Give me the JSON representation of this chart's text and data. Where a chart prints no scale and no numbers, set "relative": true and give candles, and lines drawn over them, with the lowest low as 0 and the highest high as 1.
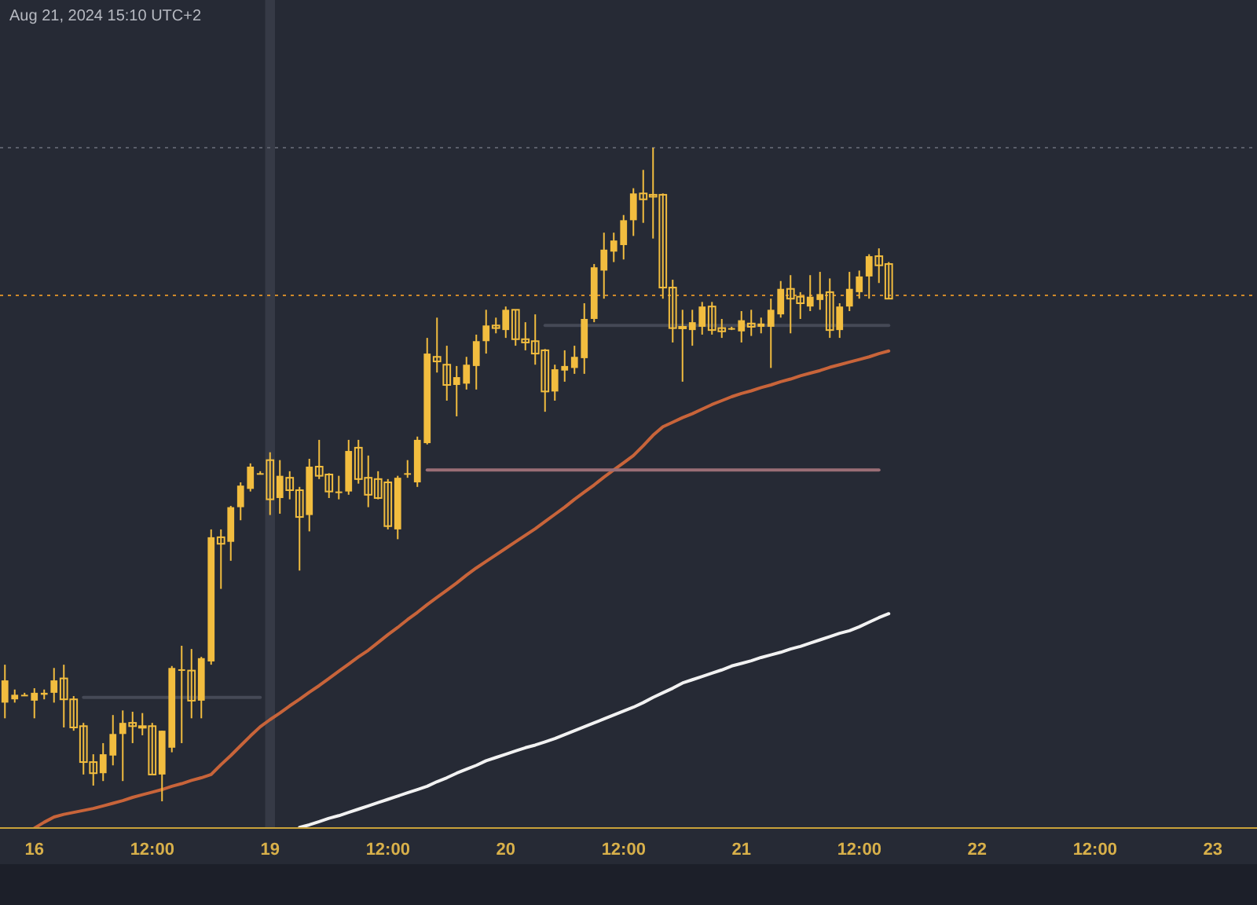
{
  "chart_data": {
    "type": "candlestick",
    "relative": true,
    "color": "#f2bd3f",
    "annotations": [
      "Aug 21, 2024 15:10 UTC+2"
    ],
    "categories": [
      null,
      null,
      null,
      "16",
      null,
      null,
      null,
      null,
      null,
      null,
      null,
      null,
      null,
      null,
      null,
      "12:00",
      null,
      null,
      null,
      null,
      null,
      null,
      null,
      null,
      null,
      null,
      null,
      "19",
      null,
      null,
      null,
      null,
      null,
      null,
      null,
      null,
      null,
      null,
      null,
      "12:00",
      null,
      null,
      null,
      null,
      null,
      null,
      null,
      null,
      null,
      null,
      null,
      "20",
      null,
      null,
      null,
      null,
      null,
      null,
      null,
      null,
      null,
      null,
      null,
      "12:00",
      null,
      null,
      null,
      null,
      null,
      null,
      null,
      null,
      null,
      null,
      null,
      "21",
      null,
      null,
      null,
      null,
      null,
      null,
      null,
      null,
      null,
      null,
      null,
      "12:00",
      null,
      null,
      null,
      null,
      null,
      null,
      null,
      null,
      null,
      null,
      null,
      "22",
      null,
      null,
      null,
      null,
      null,
      null,
      null,
      null,
      null,
      null,
      null,
      "12:00",
      null,
      null,
      null,
      null,
      null,
      null,
      null,
      null,
      null,
      null,
      null,
      "23",
      null,
      null,
      null,
      null
    ],
    "ohlc": [
      [
        0.151,
        0.209,
        0.127,
        0.185
      ],
      [
        0.156,
        0.171,
        0.151,
        0.163
      ],
      [
        0.163,
        0.166,
        0.161,
        0.163
      ],
      [
        0.154,
        0.173,
        0.127,
        0.166
      ],
      [
        0.163,
        0.171,
        0.156,
        0.166
      ],
      [
        0.166,
        0.204,
        0.151,
        0.185
      ],
      [
        0.188,
        0.209,
        0.113,
        0.156
      ],
      [
        0.156,
        0.161,
        0.108,
        0.113
      ],
      [
        0.115,
        0.12,
        0.041,
        0.06
      ],
      [
        0.06,
        0.072,
        0.024,
        0.043
      ],
      [
        0.043,
        0.089,
        0.031,
        0.072
      ],
      [
        0.07,
        0.132,
        0.055,
        0.103
      ],
      [
        0.103,
        0.139,
        0.031,
        0.12
      ],
      [
        0.12,
        0.137,
        0.089,
        0.115
      ],
      [
        0.115,
        0.135,
        0.101,
        0.113
      ],
      [
        0.115,
        0.12,
        0.041,
        0.041
      ],
      [
        0.041,
        0.108,
        0,
        0.108
      ],
      [
        0.082,
        0.207,
        0.075,
        0.204
      ],
      [
        0.2,
        0.238,
        0.089,
        0.202
      ],
      [
        0.2,
        0.233,
        0.127,
        0.154
      ],
      [
        0.154,
        0.221,
        0.127,
        0.219
      ],
      [
        0.214,
        0.416,
        0.209,
        0.404
      ],
      [
        0.404,
        0.416,
        0.325,
        0.394
      ],
      [
        0.397,
        0.452,
        0.368,
        0.45
      ],
      [
        0.45,
        0.488,
        0.43,
        0.483
      ],
      [
        0.478,
        0.517,
        0.474,
        0.512
      ],
      [
        0.502,
        0.505,
        0.5,
        0.502
      ],
      [
        0.522,
        0.534,
        0.438,
        0.462
      ],
      [
        0.464,
        0.522,
        0.44,
        0.498
      ],
      [
        0.495,
        0.505,
        0.462,
        0.476
      ],
      [
        0.476,
        0.481,
        0.353,
        0.435
      ],
      [
        0.438,
        0.524,
        0.413,
        0.512
      ],
      [
        0.512,
        0.553,
        0.493,
        0.498
      ],
      [
        0.5,
        0.502,
        0.464,
        0.474
      ],
      [
        0.474,
        0.498,
        0.462,
        0.474
      ],
      [
        0.474,
        0.553,
        0.469,
        0.536
      ],
      [
        0.541,
        0.553,
        0.486,
        0.493
      ],
      [
        0.495,
        0.529,
        0.45,
        0.469
      ],
      [
        0.493,
        0.505,
        0.462,
        0.464
      ],
      [
        0.488,
        0.493,
        0.416,
        0.421
      ],
      [
        0.416,
        0.498,
        0.401,
        0.495
      ],
      [
        0.502,
        0.522,
        0.495,
        0.502
      ],
      [
        0.488,
        0.558,
        0.481,
        0.553
      ],
      [
        0.548,
        0.709,
        0.546,
        0.685
      ],
      [
        0.68,
        0.74,
        0.656,
        0.673
      ],
      [
        0.668,
        0.697,
        0.613,
        0.637
      ],
      [
        0.637,
        0.666,
        0.589,
        0.649
      ],
      [
        0.639,
        0.68,
        0.63,
        0.668
      ],
      [
        0.666,
        0.714,
        0.63,
        0.704
      ],
      [
        0.704,
        0.752,
        0.685,
        0.728
      ],
      [
        0.728,
        0.74,
        0.716,
        0.724
      ],
      [
        0.721,
        0.757,
        0.709,
        0.752
      ],
      [
        0.752,
        0.752,
        0.697,
        0.707
      ],
      [
        0.707,
        0.733,
        0.69,
        0.702
      ],
      [
        0.704,
        0.745,
        0.668,
        0.685
      ],
      [
        0.69,
        0.692,
        0.596,
        0.627
      ],
      [
        0.627,
        0.668,
        0.613,
        0.661
      ],
      [
        0.659,
        0.69,
        0.642,
        0.666
      ],
      [
        0.663,
        0.697,
        0.654,
        0.68
      ],
      [
        0.678,
        0.762,
        0.654,
        0.738
      ],
      [
        0.738,
        0.822,
        0.733,
        0.817
      ],
      [
        0.812,
        0.87,
        0.769,
        0.844
      ],
      [
        0.841,
        0.87,
        0.825,
        0.858
      ],
      [
        0.851,
        0.897,
        0.829,
        0.889
      ],
      [
        0.889,
        0.938,
        0.865,
        0.93
      ],
      [
        0.93,
        0.966,
        0.885,
        0.921
      ],
      [
        0.928,
        1,
        0.861,
        0.925
      ],
      [
        0.928,
        0.93,
        0.769,
        0.786
      ],
      [
        0.786,
        0.798,
        0.702,
        0.724
      ],
      [
        0.726,
        0.752,
        0.642,
        0.724
      ],
      [
        0.721,
        0.752,
        0.697,
        0.733
      ],
      [
        0.726,
        0.764,
        0.714,
        0.757
      ],
      [
        0.757,
        0.764,
        0.714,
        0.721
      ],
      [
        0.724,
        0.738,
        0.709,
        0.719
      ],
      [
        0.724,
        0.726,
        0.721,
        0.724
      ],
      [
        0.719,
        0.75,
        0.702,
        0.736
      ],
      [
        0.731,
        0.752,
        0.712,
        0.726
      ],
      [
        0.726,
        0.74,
        0.716,
        0.731
      ],
      [
        0.726,
        0.769,
        0.663,
        0.752
      ],
      [
        0.745,
        0.796,
        0.74,
        0.784
      ],
      [
        0.784,
        0.805,
        0.716,
        0.769
      ],
      [
        0.772,
        0.779,
        0.738,
        0.762
      ],
      [
        0.757,
        0.805,
        0.75,
        0.772
      ],
      [
        0.767,
        0.81,
        0.752,
        0.776
      ],
      [
        0.779,
        0.8,
        0.709,
        0.721
      ],
      [
        0.721,
        0.762,
        0.709,
        0.757
      ],
      [
        0.757,
        0.81,
        0.75,
        0.784
      ],
      [
        0.779,
        0.812,
        0.769,
        0.803
      ],
      [
        0.803,
        0.837,
        0.769,
        0.834
      ],
      [
        0.834,
        0.846,
        0.793,
        0.82
      ],
      [
        0.822,
        0.825,
        0.769,
        0.769
      ],
      null,
      null,
      null,
      null,
      null,
      null,
      null,
      null,
      null,
      null,
      null,
      null,
      null,
      null,
      null,
      null,
      null,
      null,
      null,
      null,
      null,
      null,
      null,
      null,
      null,
      null,
      null,
      null,
      null,
      null,
      null,
      null,
      null,
      null,
      null,
      null,
      null
    ],
    "series": [
      {
        "type": "line",
        "color": "#c8643a",
        "values": [
          null,
          null,
          null,
          -0.041,
          -0.032,
          -0.024,
          -0.02,
          -0.017,
          -0.014,
          -0.011,
          -0.007,
          -0.003,
          0.001,
          0.006,
          0.01,
          0.014,
          0.018,
          0.023,
          0.027,
          0.032,
          0.036,
          0.041,
          0.056,
          0.07,
          0.085,
          0.1,
          0.114,
          0.125,
          0.135,
          0.146,
          0.156,
          0.167,
          0.177,
          0.188,
          0.199,
          0.21,
          0.221,
          0.231,
          0.243,
          0.255,
          0.266,
          0.278,
          0.289,
          0.301,
          0.312,
          0.323,
          0.334,
          0.346,
          0.357,
          0.367,
          0.377,
          0.387,
          0.397,
          0.407,
          0.417,
          0.428,
          0.439,
          0.45,
          0.462,
          0.473,
          0.484,
          0.496,
          0.507,
          0.518,
          0.529,
          0.544,
          0.56,
          0.573,
          0.58,
          0.587,
          0.593,
          0.6,
          0.607,
          0.613,
          0.619,
          0.624,
          0.628,
          0.633,
          0.637,
          0.642,
          0.646,
          0.651,
          0.655,
          0.659,
          0.664,
          0.668,
          0.672,
          0.676,
          0.68,
          0.685,
          0.689,
          null,
          null,
          null,
          null,
          null,
          null,
          null,
          null,
          null,
          null,
          null,
          null,
          null,
          null,
          null,
          null,
          null,
          null,
          null,
          null,
          null,
          null,
          null,
          null,
          null,
          null,
          null,
          null,
          null,
          null,
          null,
          null,
          null,
          null,
          null,
          null,
          null
        ]
      },
      {
        "type": "line",
        "color": "#f2f2f2",
        "values": [
          null,
          null,
          null,
          null,
          null,
          null,
          null,
          null,
          null,
          null,
          null,
          null,
          null,
          null,
          null,
          null,
          null,
          null,
          null,
          null,
          null,
          null,
          null,
          null,
          null,
          null,
          null,
          null,
          null,
          null,
          -0.04,
          -0.036,
          -0.031,
          -0.026,
          -0.022,
          -0.017,
          -0.012,
          -0.007,
          -0.002,
          0.003,
          0.008,
          0.013,
          0.018,
          0.023,
          0.03,
          0.036,
          0.043,
          0.049,
          0.055,
          0.062,
          0.067,
          0.072,
          0.077,
          0.082,
          0.086,
          0.091,
          0.096,
          0.102,
          0.108,
          0.114,
          0.12,
          0.126,
          0.132,
          0.138,
          0.144,
          0.151,
          0.159,
          0.166,
          0.173,
          0.181,
          0.186,
          0.191,
          0.196,
          0.201,
          0.207,
          0.211,
          0.215,
          0.22,
          0.224,
          0.228,
          0.233,
          0.237,
          0.242,
          0.247,
          0.252,
          0.257,
          0.261,
          0.267,
          0.274,
          0.281,
          0.287,
          null,
          null,
          null,
          null,
          null,
          null,
          null,
          null,
          null,
          null,
          null,
          null,
          null,
          null,
          null,
          null,
          null,
          null,
          null,
          null,
          null,
          null,
          null,
          null,
          null,
          null,
          null,
          null,
          null,
          null,
          null,
          null,
          null,
          null,
          null,
          null,
          null
        ]
      },
      {
        "type": "line",
        "color": "#9a6e76",
        "values": [
          null,
          null,
          null,
          null,
          null,
          null,
          null,
          null,
          null,
          null,
          null,
          null,
          null,
          null,
          null,
          null,
          null,
          null,
          null,
          null,
          null,
          null,
          null,
          null,
          null,
          null,
          null,
          null,
          null,
          null,
          null,
          null,
          null,
          null,
          null,
          null,
          null,
          null,
          null,
          null,
          null,
          null,
          null,
          0.507,
          0.507,
          0.507,
          0.507,
          0.507,
          0.507,
          0.507,
          0.507,
          0.507,
          0.507,
          0.507,
          0.507,
          0.507,
          0.507,
          0.507,
          0.507,
          0.507,
          0.507,
          0.507,
          0.507,
          0.507,
          0.507,
          0.507,
          0.507,
          0.507,
          0.507,
          0.507,
          0.507,
          0.507,
          0.507,
          0.507,
          0.507,
          0.507,
          0.507,
          0.507,
          0.507,
          0.507,
          0.507,
          0.507,
          0.507,
          0.507,
          0.507,
          0.507,
          0.507,
          0.507,
          0.507,
          0.507,
          null,
          null,
          null,
          null,
          null,
          null,
          null,
          null,
          null,
          null,
          null,
          null,
          null,
          null,
          null,
          null,
          null,
          null,
          null,
          null,
          null,
          null,
          null,
          null,
          null,
          null,
          null,
          null,
          null,
          null,
          null,
          null,
          null,
          null,
          null,
          null,
          null,
          null
        ]
      },
      {
        "type": "line",
        "color": "#454956",
        "values": [
          null,
          null,
          null,
          null,
          null,
          null,
          null,
          null,
          null,
          null,
          null,
          null,
          null,
          null,
          null,
          null,
          null,
          null,
          null,
          null,
          null,
          null,
          null,
          null,
          null,
          null,
          null,
          null,
          null,
          null,
          null,
          null,
          null,
          null,
          null,
          null,
          null,
          null,
          null,
          null,
          null,
          null,
          null,
          null,
          null,
          null,
          null,
          null,
          null,
          null,
          null,
          null,
          null,
          null,
          null,
          0.728,
          0.728,
          0.728,
          0.728,
          0.728,
          0.728,
          0.728,
          0.728,
          0.728,
          0.728,
          0.728,
          0.728,
          0.728,
          0.728,
          0.728,
          0.728,
          0.728,
          0.728,
          0.728,
          0.728,
          0.728,
          0.728,
          0.728,
          0.728,
          0.728,
          0.728,
          0.728,
          0.728,
          0.728,
          0.728,
          0.728,
          0.728,
          0.728,
          0.728,
          0.728,
          0.728,
          null,
          null,
          null,
          null,
          null,
          null,
          null,
          null,
          null,
          null,
          null,
          null,
          null,
          null,
          null,
          null,
          null,
          null,
          null,
          null,
          null,
          null,
          null,
          null,
          null,
          null,
          null,
          null,
          null,
          null,
          null,
          null,
          null,
          null,
          null,
          null,
          null
        ]
      },
      {
        "type": "line",
        "color": "#454956",
        "values": [
          null,
          null,
          null,
          null,
          null,
          null,
          null,
          null,
          0.159,
          0.159,
          0.159,
          0.159,
          0.159,
          0.159,
          0.159,
          0.159,
          0.159,
          0.159,
          0.159,
          0.159,
          0.159,
          0.159,
          0.159,
          0.159,
          0.159,
          0.159,
          0.159,
          null,
          null,
          null,
          null,
          null,
          null,
          null,
          null,
          null,
          null,
          null,
          null,
          null,
          null,
          null,
          null,
          null,
          null,
          null,
          null,
          null,
          null,
          null,
          null,
          null,
          null,
          null,
          null,
          null,
          null,
          null,
          null,
          null,
          null,
          null,
          null,
          null,
          null,
          null,
          null,
          null,
          null,
          null,
          null,
          null,
          null,
          null,
          null,
          null,
          null,
          null,
          null,
          null,
          null,
          null,
          null,
          null,
          null,
          null,
          null,
          null,
          null,
          null,
          null,
          null,
          null,
          null,
          null,
          null,
          null,
          null,
          null,
          null,
          null,
          null,
          null,
          null,
          null,
          null,
          null,
          null,
          null,
          null,
          null,
          null,
          null,
          null,
          null,
          null,
          null,
          null,
          null,
          null,
          null,
          null,
          null,
          null,
          null,
          null,
          null,
          null
        ]
      }
    ],
    "ref_lines": [
      {
        "axis": "y",
        "value": 1.0,
        "color": "#5a5e6a",
        "line_style": "dotted"
      },
      {
        "axis": "y",
        "value": 0.774,
        "color": "#d08a2a",
        "line_style": "dotted"
      }
    ],
    "bands": [
      {
        "axis": "x",
        "from": "19",
        "to": "19",
        "color": "#363a46"
      }
    ]
  }
}
